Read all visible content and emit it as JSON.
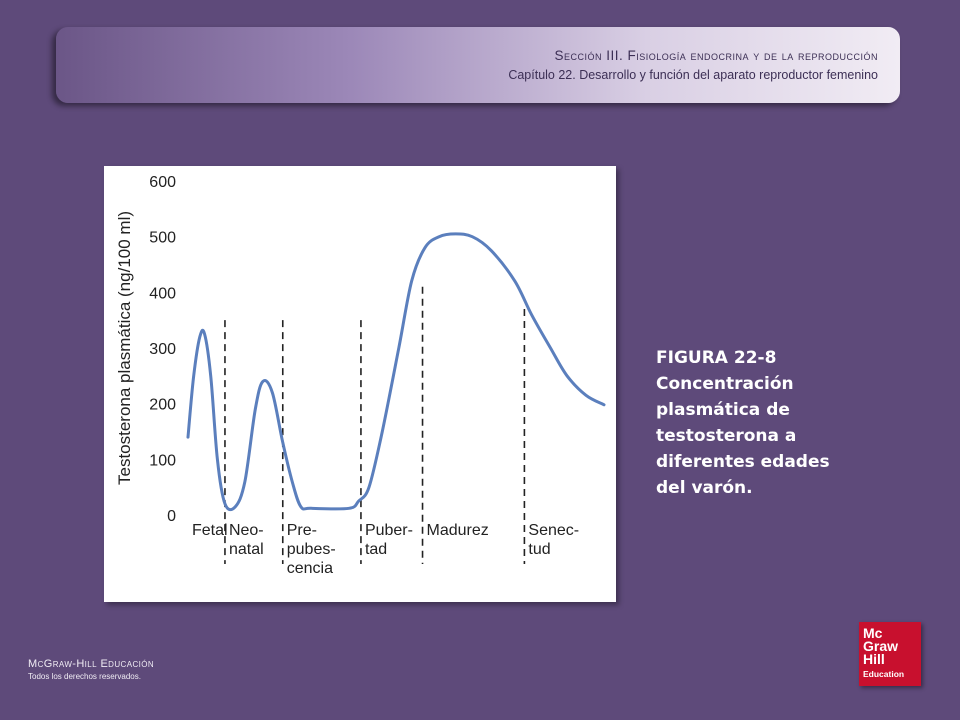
{
  "header": {
    "section_title": "Sección III. Fisiología endocrina y de la reproducción",
    "chapter_title": "Capítulo 22. Desarrollo y función del aparato reproductor femenino"
  },
  "caption": {
    "lines": [
      "FIGURA 22-8",
      "Concentración",
      "plasmática de",
      "testosterona a",
      "diferentes edades",
      "del varón."
    ]
  },
  "footer": {
    "publisher": "McGraw-Hill Educación",
    "rights": "Todos los derechos reservados."
  },
  "logo": {
    "lines": [
      "Mc",
      "Graw",
      "Hill",
      "Education"
    ],
    "color": "#c8102e"
  },
  "colors": {
    "background": "#5e4a7a",
    "curve": "#5b7fbd"
  },
  "chart_data": {
    "type": "line",
    "title": "",
    "xlabel": "",
    "ylabel": "Testosterona plasmática (ng/100 ml)",
    "ylim": [
      0,
      600
    ],
    "yticks": [
      0,
      100,
      200,
      300,
      400,
      500,
      600
    ],
    "grid": false,
    "legend": "none",
    "series": [
      {
        "values": [
          [
            0,
            140
          ],
          [
            0.12,
            250
          ],
          [
            0.25,
            320
          ],
          [
            0.35,
            325
          ],
          [
            0.48,
            250
          ],
          [
            0.62,
            100
          ],
          [
            0.78,
            20
          ],
          [
            1.0,
            15
          ],
          [
            1.2,
            60
          ],
          [
            1.42,
            190
          ],
          [
            1.58,
            240
          ],
          [
            1.78,
            220
          ],
          [
            2.0,
            130
          ],
          [
            2.2,
            60
          ],
          [
            2.38,
            15
          ],
          [
            2.6,
            12
          ],
          [
            3.4,
            12
          ],
          [
            3.6,
            25
          ],
          [
            3.82,
            50
          ],
          [
            4.1,
            150
          ],
          [
            4.45,
            300
          ],
          [
            4.72,
            420
          ],
          [
            5.0,
            480
          ],
          [
            5.3,
            500
          ],
          [
            5.65,
            505
          ],
          [
            6.0,
            500
          ],
          [
            6.4,
            475
          ],
          [
            6.9,
            420
          ],
          [
            7.25,
            360
          ],
          [
            7.65,
            300
          ],
          [
            8.0,
            250
          ],
          [
            8.4,
            215
          ],
          [
            8.78,
            198
          ]
        ]
      }
    ],
    "phases": [
      {
        "label_lines": [
          "Fetal"
        ],
        "start": 0,
        "end": 0.78
      },
      {
        "label_lines": [
          "Neo-",
          "natal"
        ],
        "start": 0.78,
        "end": 2.0
      },
      {
        "label_lines": [
          "Pre-",
          "pubes-",
          "cencia"
        ],
        "start": 2.0,
        "end": 3.65
      },
      {
        "label_lines": [
          "Puber-",
          "tad"
        ],
        "start": 3.65,
        "end": 4.95
      },
      {
        "label_lines": [
          "Madurez"
        ],
        "start": 4.95,
        "end": 7.1
      },
      {
        "label_lines": [
          "Senec-",
          "tud"
        ],
        "start": 7.1,
        "end": 8.78
      }
    ],
    "phase_dividers": [
      {
        "x": 0.78,
        "top": 350
      },
      {
        "x": 2.0,
        "top": 350
      },
      {
        "x": 3.65,
        "top": 350
      },
      {
        "x": 4.95,
        "top": 410
      },
      {
        "x": 7.1,
        "top": 370
      }
    ]
  }
}
